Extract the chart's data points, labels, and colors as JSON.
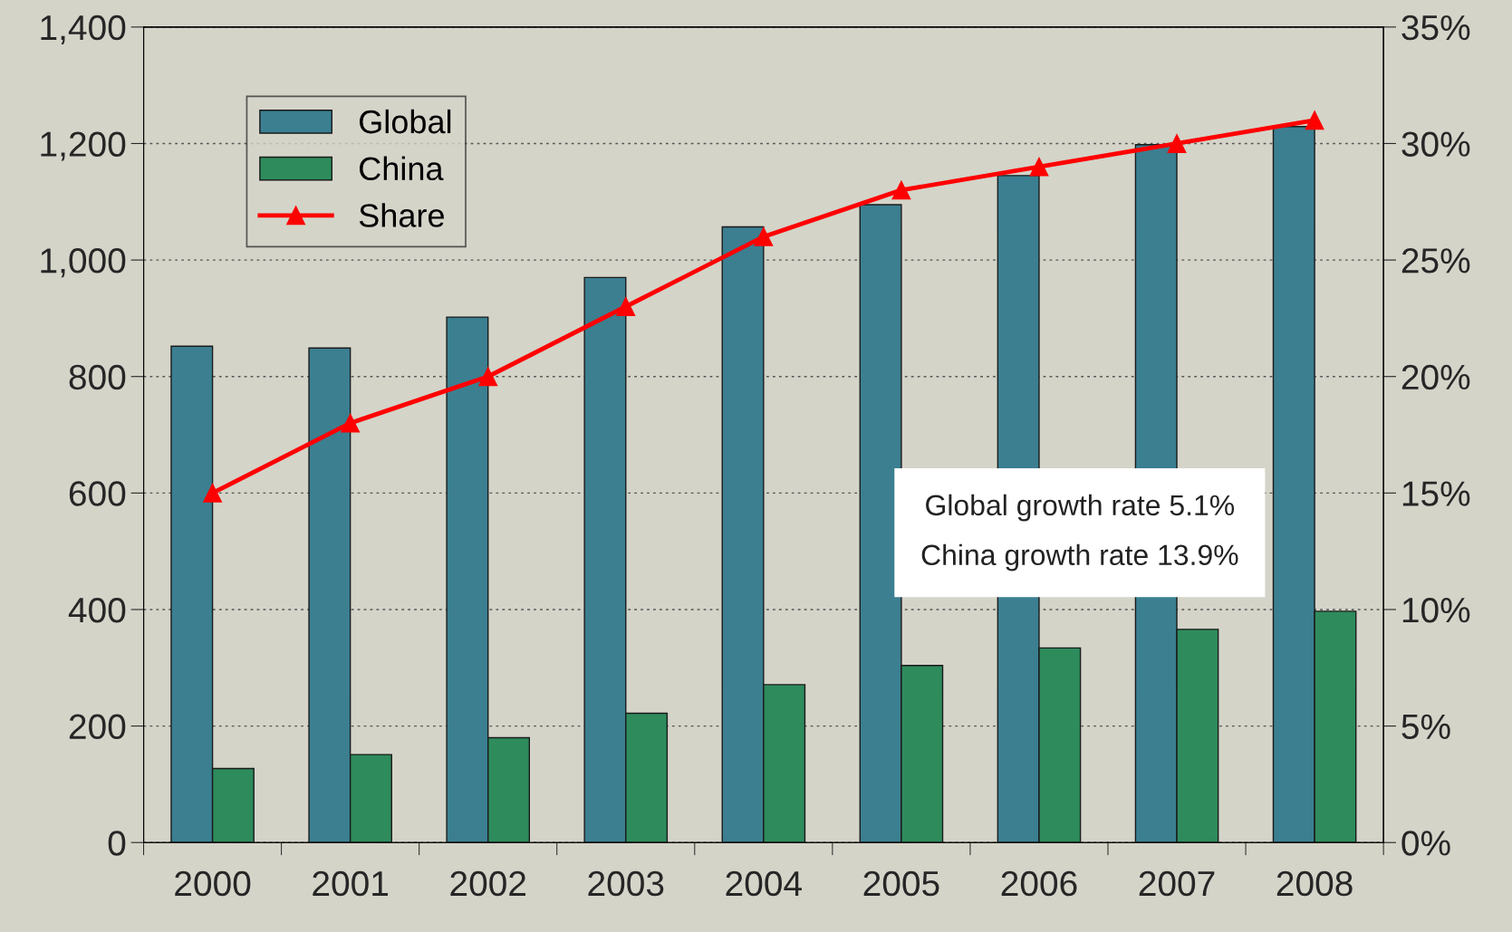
{
  "chart_data": {
    "type": "bar",
    "categories": [
      "2000",
      "2001",
      "2002",
      "2003",
      "2004",
      "2005",
      "2006",
      "2007",
      "2008"
    ],
    "series": [
      {
        "name": "Global",
        "color": "#3b7f91",
        "values": [
          852,
          849,
          902,
          970,
          1057,
          1095,
          1145,
          1198,
          1229
        ]
      },
      {
        "name": "China",
        "color": "#2e8b5c",
        "values": [
          127,
          151,
          180,
          222,
          271,
          304,
          334,
          366,
          397
        ]
      },
      {
        "name": "Share",
        "type": "line",
        "axis": "y2",
        "color": "#ff0000",
        "marker": "triangle",
        "line_style": "solid",
        "values": [
          15,
          18,
          20,
          23,
          26,
          28,
          29,
          30,
          31
        ]
      }
    ],
    "ylim": [
      0,
      1400
    ],
    "yticks": [
      {
        "value": 0,
        "label": "0"
      },
      {
        "value": 200,
        "label": "200"
      },
      {
        "value": 400,
        "label": "400"
      },
      {
        "value": 600,
        "label": "600"
      },
      {
        "value": 800,
        "label": "800"
      },
      {
        "value": 1000,
        "label": "1,000"
      },
      {
        "value": 1200,
        "label": "1,200"
      },
      {
        "value": 1400,
        "label": "1,400"
      }
    ],
    "y2lim": [
      0,
      35
    ],
    "y2ticks": [
      {
        "value": 0,
        "label": "0%"
      },
      {
        "value": 5,
        "label": "5%"
      },
      {
        "value": 10,
        "label": "10%"
      },
      {
        "value": 15,
        "label": "15%"
      },
      {
        "value": 20,
        "label": "20%"
      },
      {
        "value": 25,
        "label": "25%"
      },
      {
        "value": 30,
        "label": "30%"
      },
      {
        "value": 35,
        "label": "35%"
      }
    ],
    "annotations": [
      "Global growth rate 5.1%",
      "China growth rate 13.9%"
    ],
    "grid": "y",
    "legend": "top left"
  }
}
